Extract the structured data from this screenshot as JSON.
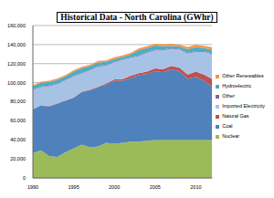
{
  "chart_data": {
    "type": "area",
    "title": "Historical Data - North Carolina (GWhr)",
    "stacked": true,
    "grid": true,
    "legend": "right",
    "x": [
      1990,
      1991,
      1992,
      1993,
      1994,
      1995,
      1996,
      1997,
      1998,
      1999,
      2000,
      2001,
      2002,
      2003,
      2004,
      2005,
      2006,
      2007,
      2008,
      2009,
      2010,
      2011,
      2012
    ],
    "xlim": [
      1990,
      2012
    ],
    "xticks": [
      1990,
      1995,
      2000,
      2005,
      2010
    ],
    "ylim": [
      0,
      160000
    ],
    "yticks": [
      0,
      {
        "value": 20000,
        "label": "20,000"
      },
      {
        "value": 40000,
        "label": "40,000"
      },
      {
        "value": 60000,
        "label": "60,000"
      },
      {
        "value": 80000,
        "label": "80,000"
      },
      {
        "value": 100000,
        "label": "100,000"
      },
      {
        "value": 120000,
        "label": "120,000"
      },
      {
        "value": 140000,
        "label": "140,000"
      },
      {
        "value": 160000,
        "label": "160,000"
      }
    ],
    "series": [
      {
        "name": "Nuclear",
        "color": "#9bbb59",
        "values": [
          26000,
          29000,
          23000,
          22000,
          27000,
          31000,
          35000,
          32000,
          33000,
          37000,
          36000,
          37000,
          38000,
          38000,
          39000,
          40000,
          40000,
          40000,
          40000,
          40000,
          40000,
          40000,
          40000
        ]
      },
      {
        "name": "Coal",
        "color": "#4f81bd",
        "values": [
          46000,
          47000,
          52000,
          56000,
          54000,
          53000,
          55000,
          60000,
          62000,
          61000,
          66000,
          65000,
          67000,
          70000,
          70000,
          72000,
          71000,
          74000,
          72000,
          64000,
          66000,
          62000,
          56000
        ]
      },
      {
        "name": "Natural Gas",
        "color": "#c0504d",
        "values": [
          300,
          300,
          400,
          400,
          500,
          600,
          600,
          700,
          900,
          1200,
          1500,
          1800,
          2200,
          2000,
          2500,
          3000,
          3200,
          3500,
          3800,
          4500,
          5500,
          6500,
          8000
        ]
      },
      {
        "name": "Imported Electricity",
        "color": "#a6c3e6",
        "values": [
          20000,
          19000,
          21000,
          20000,
          21000,
          22000,
          19000,
          20000,
          21000,
          19000,
          18000,
          20000,
          19000,
          18000,
          20000,
          19000,
          20000,
          18000,
          19000,
          22000,
          21000,
          24000,
          26000
        ]
      },
      {
        "name": "Other",
        "color": "#8064a2",
        "values": [
          500,
          500,
          500,
          500,
          500,
          600,
          600,
          600,
          600,
          600,
          600,
          600,
          700,
          700,
          700,
          700,
          700,
          700,
          700,
          700,
          700,
          700,
          700
        ]
      },
      {
        "name": "Hydroelectric",
        "color": "#4bacc6",
        "values": [
          3500,
          4000,
          3800,
          4200,
          3600,
          4500,
          5000,
          4000,
          3800,
          3000,
          2800,
          2500,
          2600,
          5500,
          4000,
          4200,
          3500,
          2600,
          2400,
          4000,
          4300,
          3200,
          4000
        ]
      },
      {
        "name": "Other Renewables",
        "color": "#f79646",
        "values": [
          1200,
          1200,
          1300,
          1300,
          1400,
          1400,
          1500,
          1500,
          1600,
          1600,
          1700,
          1700,
          1800,
          1800,
          1900,
          1900,
          2000,
          2000,
          2100,
          2200,
          2300,
          2400,
          2500
        ]
      }
    ]
  }
}
